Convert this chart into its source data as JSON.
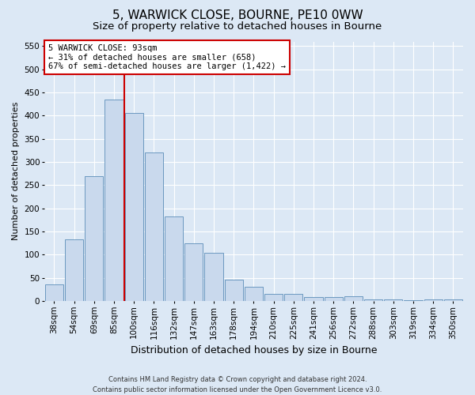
{
  "title1": "5, WARWICK CLOSE, BOURNE, PE10 0WW",
  "title2": "Size of property relative to detached houses in Bourne",
  "xlabel": "Distribution of detached houses by size in Bourne",
  "ylabel": "Number of detached properties",
  "footnote1": "Contains HM Land Registry data © Crown copyright and database right 2024.",
  "footnote2": "Contains public sector information licensed under the Open Government Licence v3.0.",
  "bar_labels": [
    "38sqm",
    "54sqm",
    "69sqm",
    "85sqm",
    "100sqm",
    "116sqm",
    "132sqm",
    "147sqm",
    "163sqm",
    "178sqm",
    "194sqm",
    "210sqm",
    "225sqm",
    "241sqm",
    "256sqm",
    "272sqm",
    "288sqm",
    "303sqm",
    "319sqm",
    "334sqm",
    "350sqm"
  ],
  "bar_values": [
    35,
    133,
    270,
    435,
    405,
    320,
    183,
    125,
    104,
    46,
    30,
    16,
    16,
    8,
    8,
    10,
    3,
    3,
    2,
    3,
    3
  ],
  "bar_color": "#c9d9ed",
  "bar_edge_color": "#5b8db8",
  "annotation_line1": "5 WARWICK CLOSE: 93sqm",
  "annotation_line2": "← 31% of detached houses are smaller (658)",
  "annotation_line3": "67% of semi-detached houses are larger (1,422) →",
  "annotation_box_color": "#ffffff",
  "annotation_box_edge": "#cc0000",
  "vline_color": "#cc0000",
  "ylim_max": 560,
  "yticks": [
    0,
    50,
    100,
    150,
    200,
    250,
    300,
    350,
    400,
    450,
    500,
    550
  ],
  "background_color": "#dce8f5",
  "plot_bg_color": "#dce8f5",
  "grid_color": "#ffffff",
  "title1_fontsize": 11,
  "title2_fontsize": 9.5,
  "xlabel_fontsize": 9,
  "ylabel_fontsize": 8,
  "tick_fontsize": 7.5,
  "annot_fontsize": 7.5,
  "footnote_fontsize": 6
}
